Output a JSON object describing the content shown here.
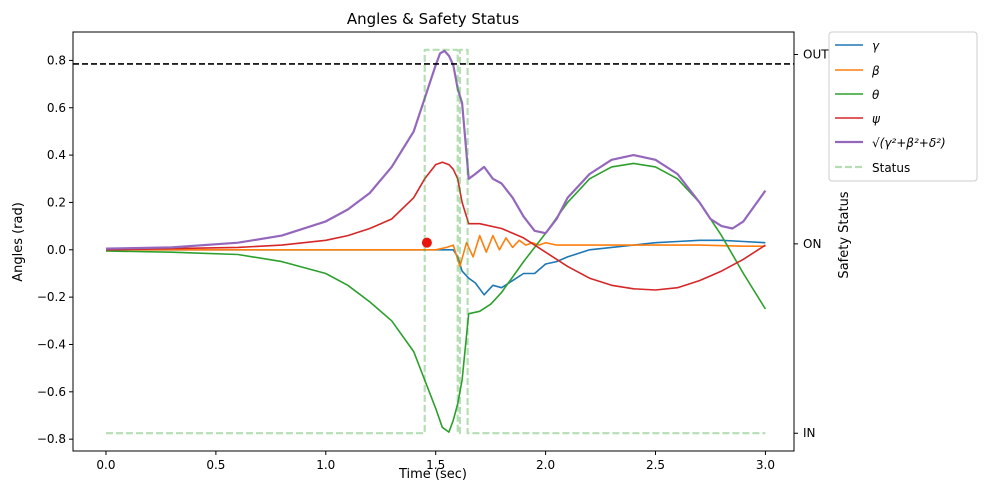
{
  "chart_data": {
    "type": "line",
    "title": "Angles & Safety Status",
    "xlabel": "Time (sec)",
    "ylabel": "Angles (rad)",
    "y2label": "Safety Status",
    "xlim": [
      -0.15,
      3.13
    ],
    "ylim": [
      -0.85,
      0.92
    ],
    "xticks": [
      "0.0",
      "0.5",
      "1.0",
      "1.5",
      "2.0",
      "2.5",
      "3.0"
    ],
    "yticks": [
      "-0.8",
      "-0.6",
      "-0.4",
      "-0.2",
      "0.0",
      "0.2",
      "0.4",
      "0.6",
      "0.8"
    ],
    "y2ticks": [
      "IN",
      "ON",
      "OUT"
    ],
    "y2_values": [
      -0.775,
      0.025,
      0.825
    ],
    "threshold": 0.785,
    "threshold_color": "#000000",
    "marker": {
      "x": 1.46,
      "y": 0.03,
      "color": "#e8150e"
    },
    "legend_position": "outside-top-right",
    "grid": false,
    "series": [
      {
        "name": "γ",
        "color": "#1f77b4",
        "x": [
          0,
          0.5,
          1.0,
          1.3,
          1.5,
          1.55,
          1.58,
          1.6,
          1.62,
          1.65,
          1.68,
          1.72,
          1.76,
          1.8,
          1.85,
          1.9,
          1.95,
          2.0,
          2.05,
          2.1,
          2.2,
          2.3,
          2.4,
          2.5,
          2.6,
          2.7,
          2.8,
          2.9,
          3.0
        ],
        "y": [
          0.0,
          0.0,
          0.0,
          0.0,
          0.0,
          0.0,
          0.0,
          -0.03,
          -0.09,
          -0.12,
          -0.14,
          -0.19,
          -0.15,
          -0.16,
          -0.13,
          -0.1,
          -0.1,
          -0.06,
          -0.05,
          -0.03,
          0.0,
          0.01,
          0.02,
          0.03,
          0.035,
          0.04,
          0.04,
          0.035,
          0.03
        ]
      },
      {
        "name": "β",
        "color": "#ff7f0e",
        "x": [
          0,
          0.5,
          1.0,
          1.3,
          1.5,
          1.55,
          1.58,
          1.61,
          1.64,
          1.67,
          1.7,
          1.73,
          1.76,
          1.79,
          1.82,
          1.85,
          1.88,
          1.91,
          1.94,
          1.97,
          2.0,
          2.05,
          2.1,
          2.2,
          2.3,
          2.5,
          2.7,
          2.9,
          3.0
        ],
        "y": [
          0.0,
          0.0,
          0.0,
          0.0,
          0.0,
          0.01,
          0.02,
          -0.07,
          0.03,
          -0.03,
          0.06,
          -0.01,
          0.06,
          0.0,
          0.05,
          0.01,
          0.04,
          0.02,
          0.03,
          0.02,
          0.03,
          0.02,
          0.02,
          0.02,
          0.02,
          0.02,
          0.02,
          0.015,
          0.015
        ]
      },
      {
        "name": "θ",
        "color": "#2ca02c",
        "x": [
          0,
          0.3,
          0.6,
          0.8,
          1.0,
          1.1,
          1.2,
          1.3,
          1.4,
          1.45,
          1.5,
          1.53,
          1.56,
          1.58,
          1.6,
          1.62,
          1.65,
          1.7,
          1.75,
          1.8,
          1.9,
          2.0,
          2.1,
          2.2,
          2.3,
          2.4,
          2.5,
          2.6,
          2.7,
          2.8,
          2.9,
          3.0
        ],
        "y": [
          -0.005,
          -0.01,
          -0.02,
          -0.05,
          -0.1,
          -0.15,
          -0.22,
          -0.3,
          -0.43,
          -0.55,
          -0.67,
          -0.75,
          -0.77,
          -0.72,
          -0.65,
          -0.55,
          -0.27,
          -0.26,
          -0.23,
          -0.18,
          -0.05,
          0.07,
          0.2,
          0.3,
          0.35,
          0.365,
          0.35,
          0.3,
          0.2,
          0.06,
          -0.1,
          -0.25
        ]
      },
      {
        "name": "ψ",
        "color": "#d62728",
        "x": [
          0,
          0.3,
          0.6,
          0.8,
          1.0,
          1.1,
          1.2,
          1.3,
          1.4,
          1.45,
          1.5,
          1.53,
          1.56,
          1.58,
          1.6,
          1.62,
          1.65,
          1.7,
          1.8,
          1.9,
          2.0,
          2.1,
          2.2,
          2.3,
          2.4,
          2.5,
          2.6,
          2.7,
          2.8,
          2.9,
          3.0
        ],
        "y": [
          0.0,
          0.005,
          0.01,
          0.02,
          0.04,
          0.06,
          0.09,
          0.13,
          0.22,
          0.3,
          0.36,
          0.37,
          0.36,
          0.34,
          0.3,
          0.2,
          0.11,
          0.11,
          0.09,
          0.05,
          -0.01,
          -0.07,
          -0.12,
          -0.15,
          -0.165,
          -0.17,
          -0.16,
          -0.13,
          -0.09,
          -0.04,
          0.02
        ]
      },
      {
        "name": "√(γ²+β²+δ²)",
        "color": "#9467bd",
        "x": [
          0,
          0.3,
          0.6,
          0.8,
          1.0,
          1.1,
          1.2,
          1.3,
          1.4,
          1.45,
          1.5,
          1.52,
          1.54,
          1.56,
          1.58,
          1.6,
          1.62,
          1.65,
          1.68,
          1.72,
          1.76,
          1.8,
          1.85,
          1.9,
          1.95,
          2.0,
          2.05,
          2.1,
          2.2,
          2.3,
          2.4,
          2.5,
          2.6,
          2.7,
          2.75,
          2.8,
          2.85,
          2.9,
          3.0
        ],
        "y": [
          0.005,
          0.01,
          0.03,
          0.06,
          0.12,
          0.17,
          0.24,
          0.35,
          0.5,
          0.64,
          0.78,
          0.83,
          0.84,
          0.82,
          0.78,
          0.68,
          0.62,
          0.3,
          0.32,
          0.35,
          0.3,
          0.28,
          0.22,
          0.14,
          0.08,
          0.07,
          0.13,
          0.22,
          0.32,
          0.38,
          0.4,
          0.38,
          0.32,
          0.2,
          0.13,
          0.1,
          0.09,
          0.12,
          0.25
        ]
      },
      {
        "name": "Status",
        "color": "#2ca02c",
        "dashed": true,
        "x": [
          0,
          1.45,
          1.45,
          1.6,
          1.6,
          1.61,
          1.61,
          1.645,
          1.645,
          3.0
        ],
        "y": [
          -0.775,
          -0.775,
          0.845,
          0.845,
          -0.775,
          -0.775,
          0.845,
          0.845,
          -0.775,
          -0.775
        ]
      }
    ]
  }
}
